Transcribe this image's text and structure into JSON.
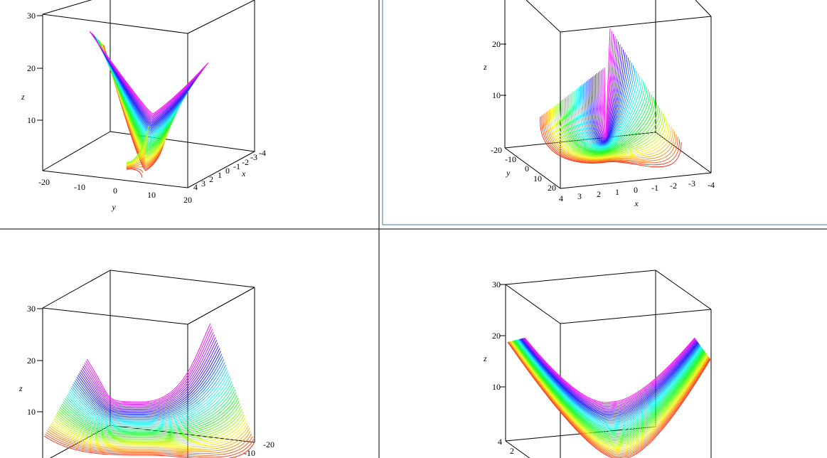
{
  "chart_data": [
    {
      "type": "surface3d",
      "position": "top-left",
      "xlabel": "x",
      "ylabel": "y",
      "zlabel": "z",
      "x_ticks": [
        "4",
        "3",
        "2",
        "1",
        "0",
        "-1",
        "-2",
        "-3",
        "-4"
      ],
      "y_ticks": [
        "-20",
        "-10",
        "0",
        "10",
        "20"
      ],
      "z_ticks": [
        "10",
        "20",
        "30"
      ],
      "xlim": [
        -4,
        4
      ],
      "ylim": [
        -20,
        20
      ],
      "zlim": [
        0,
        30
      ],
      "colormap": "rainbow",
      "style": "contour curves"
    },
    {
      "type": "surface3d",
      "position": "top-right",
      "selected": true,
      "xlabel": "x",
      "ylabel": "y",
      "zlabel": "z",
      "x_ticks": [
        "4",
        "3",
        "2",
        "1",
        "0",
        "-1",
        "-2",
        "-3",
        "-4"
      ],
      "y_ticks": [
        "-20",
        "-10",
        "0",
        "10",
        "20"
      ],
      "z_ticks": [
        "10",
        "20"
      ],
      "xlim": [
        -4,
        4
      ],
      "ylim": [
        -20,
        20
      ],
      "colormap": "rainbow",
      "style": "contour curves"
    },
    {
      "type": "surface3d",
      "position": "bottom-left",
      "zlabel": "z",
      "y_ticks": [
        "-20",
        "-10"
      ],
      "z_ticks": [
        "10",
        "20",
        "30"
      ],
      "colormap": "rainbow",
      "style": "contour curves"
    },
    {
      "type": "surface3d",
      "position": "bottom-right",
      "zlabel": "z",
      "x_ticks": [
        "4",
        "2"
      ],
      "z_ticks": [
        "10",
        "20",
        "30"
      ],
      "colormap": "rainbow",
      "style": "contour curves"
    }
  ]
}
